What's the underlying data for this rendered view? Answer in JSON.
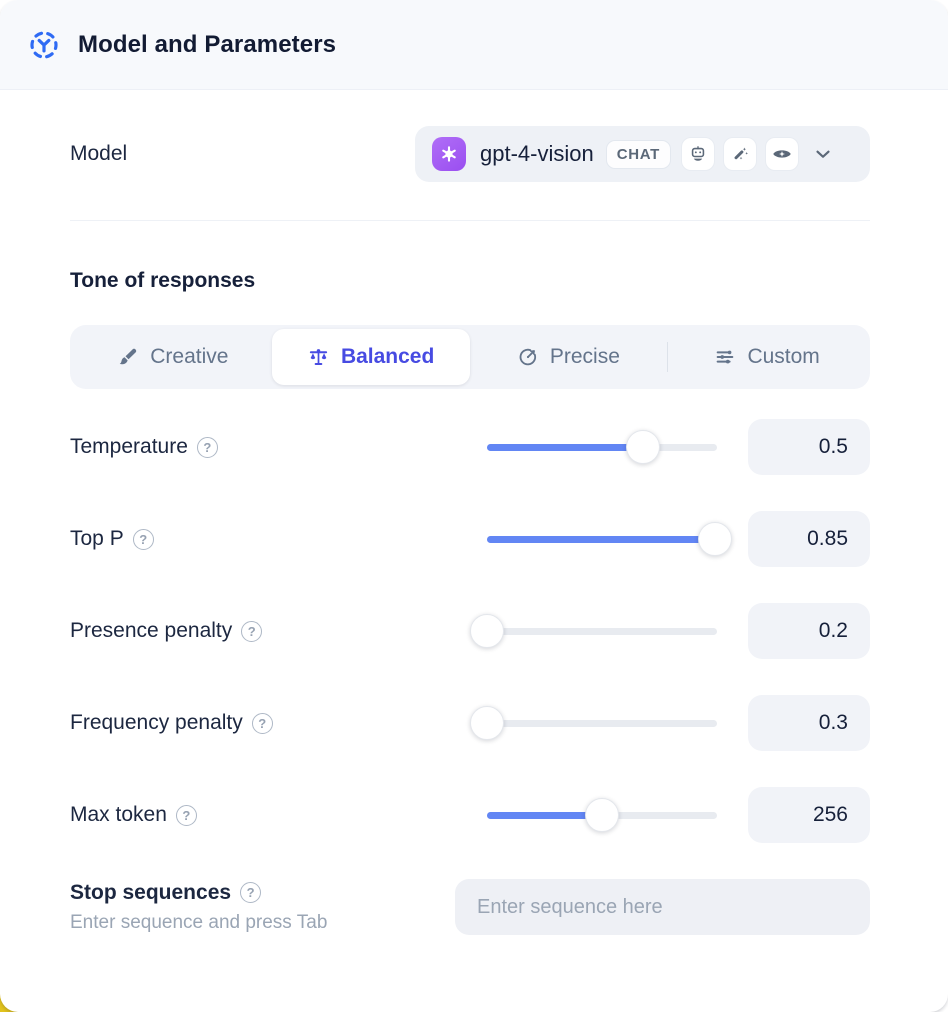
{
  "header": {
    "title": "Model and Parameters"
  },
  "model": {
    "label": "Model",
    "selected_model": "gpt-4-vision",
    "type_badge": "CHAT",
    "capability_icons": [
      "robot-icon",
      "magic-wand-icon",
      "vision-eye-icon"
    ]
  },
  "tone": {
    "section_title": "Tone of responses",
    "options": [
      {
        "label": "Creative",
        "icon": "paintbrush-icon",
        "selected": false
      },
      {
        "label": "Balanced",
        "icon": "balance-scale-icon",
        "selected": true
      },
      {
        "label": "Precise",
        "icon": "target-icon",
        "selected": false
      },
      {
        "label": "Custom",
        "icon": "sliders-icon",
        "selected": false
      }
    ]
  },
  "parameters": [
    {
      "label": "Temperature",
      "value": "0.5",
      "slider_pct": 68
    },
    {
      "label": "Top P",
      "value": "0.85",
      "slider_pct": 99
    },
    {
      "label": "Presence penalty",
      "value": "0.2",
      "slider_pct": 0
    },
    {
      "label": "Frequency penalty",
      "value": "0.3",
      "slider_pct": 0
    },
    {
      "label": "Max token",
      "value": "256",
      "slider_pct": 50
    }
  ],
  "stop_sequences": {
    "label": "Stop sequences",
    "hint": "Enter sequence and press Tab",
    "placeholder": "Enter sequence here"
  },
  "colors": {
    "accent_blue": "#6286f4",
    "selected_indigo": "#474be2",
    "header_icon_blue": "#2f6bf4",
    "openai_purple": "#a763f2",
    "slate_text": "#64748b",
    "dark_text": "#16203a",
    "corner_yellow": "#e2c31d"
  }
}
